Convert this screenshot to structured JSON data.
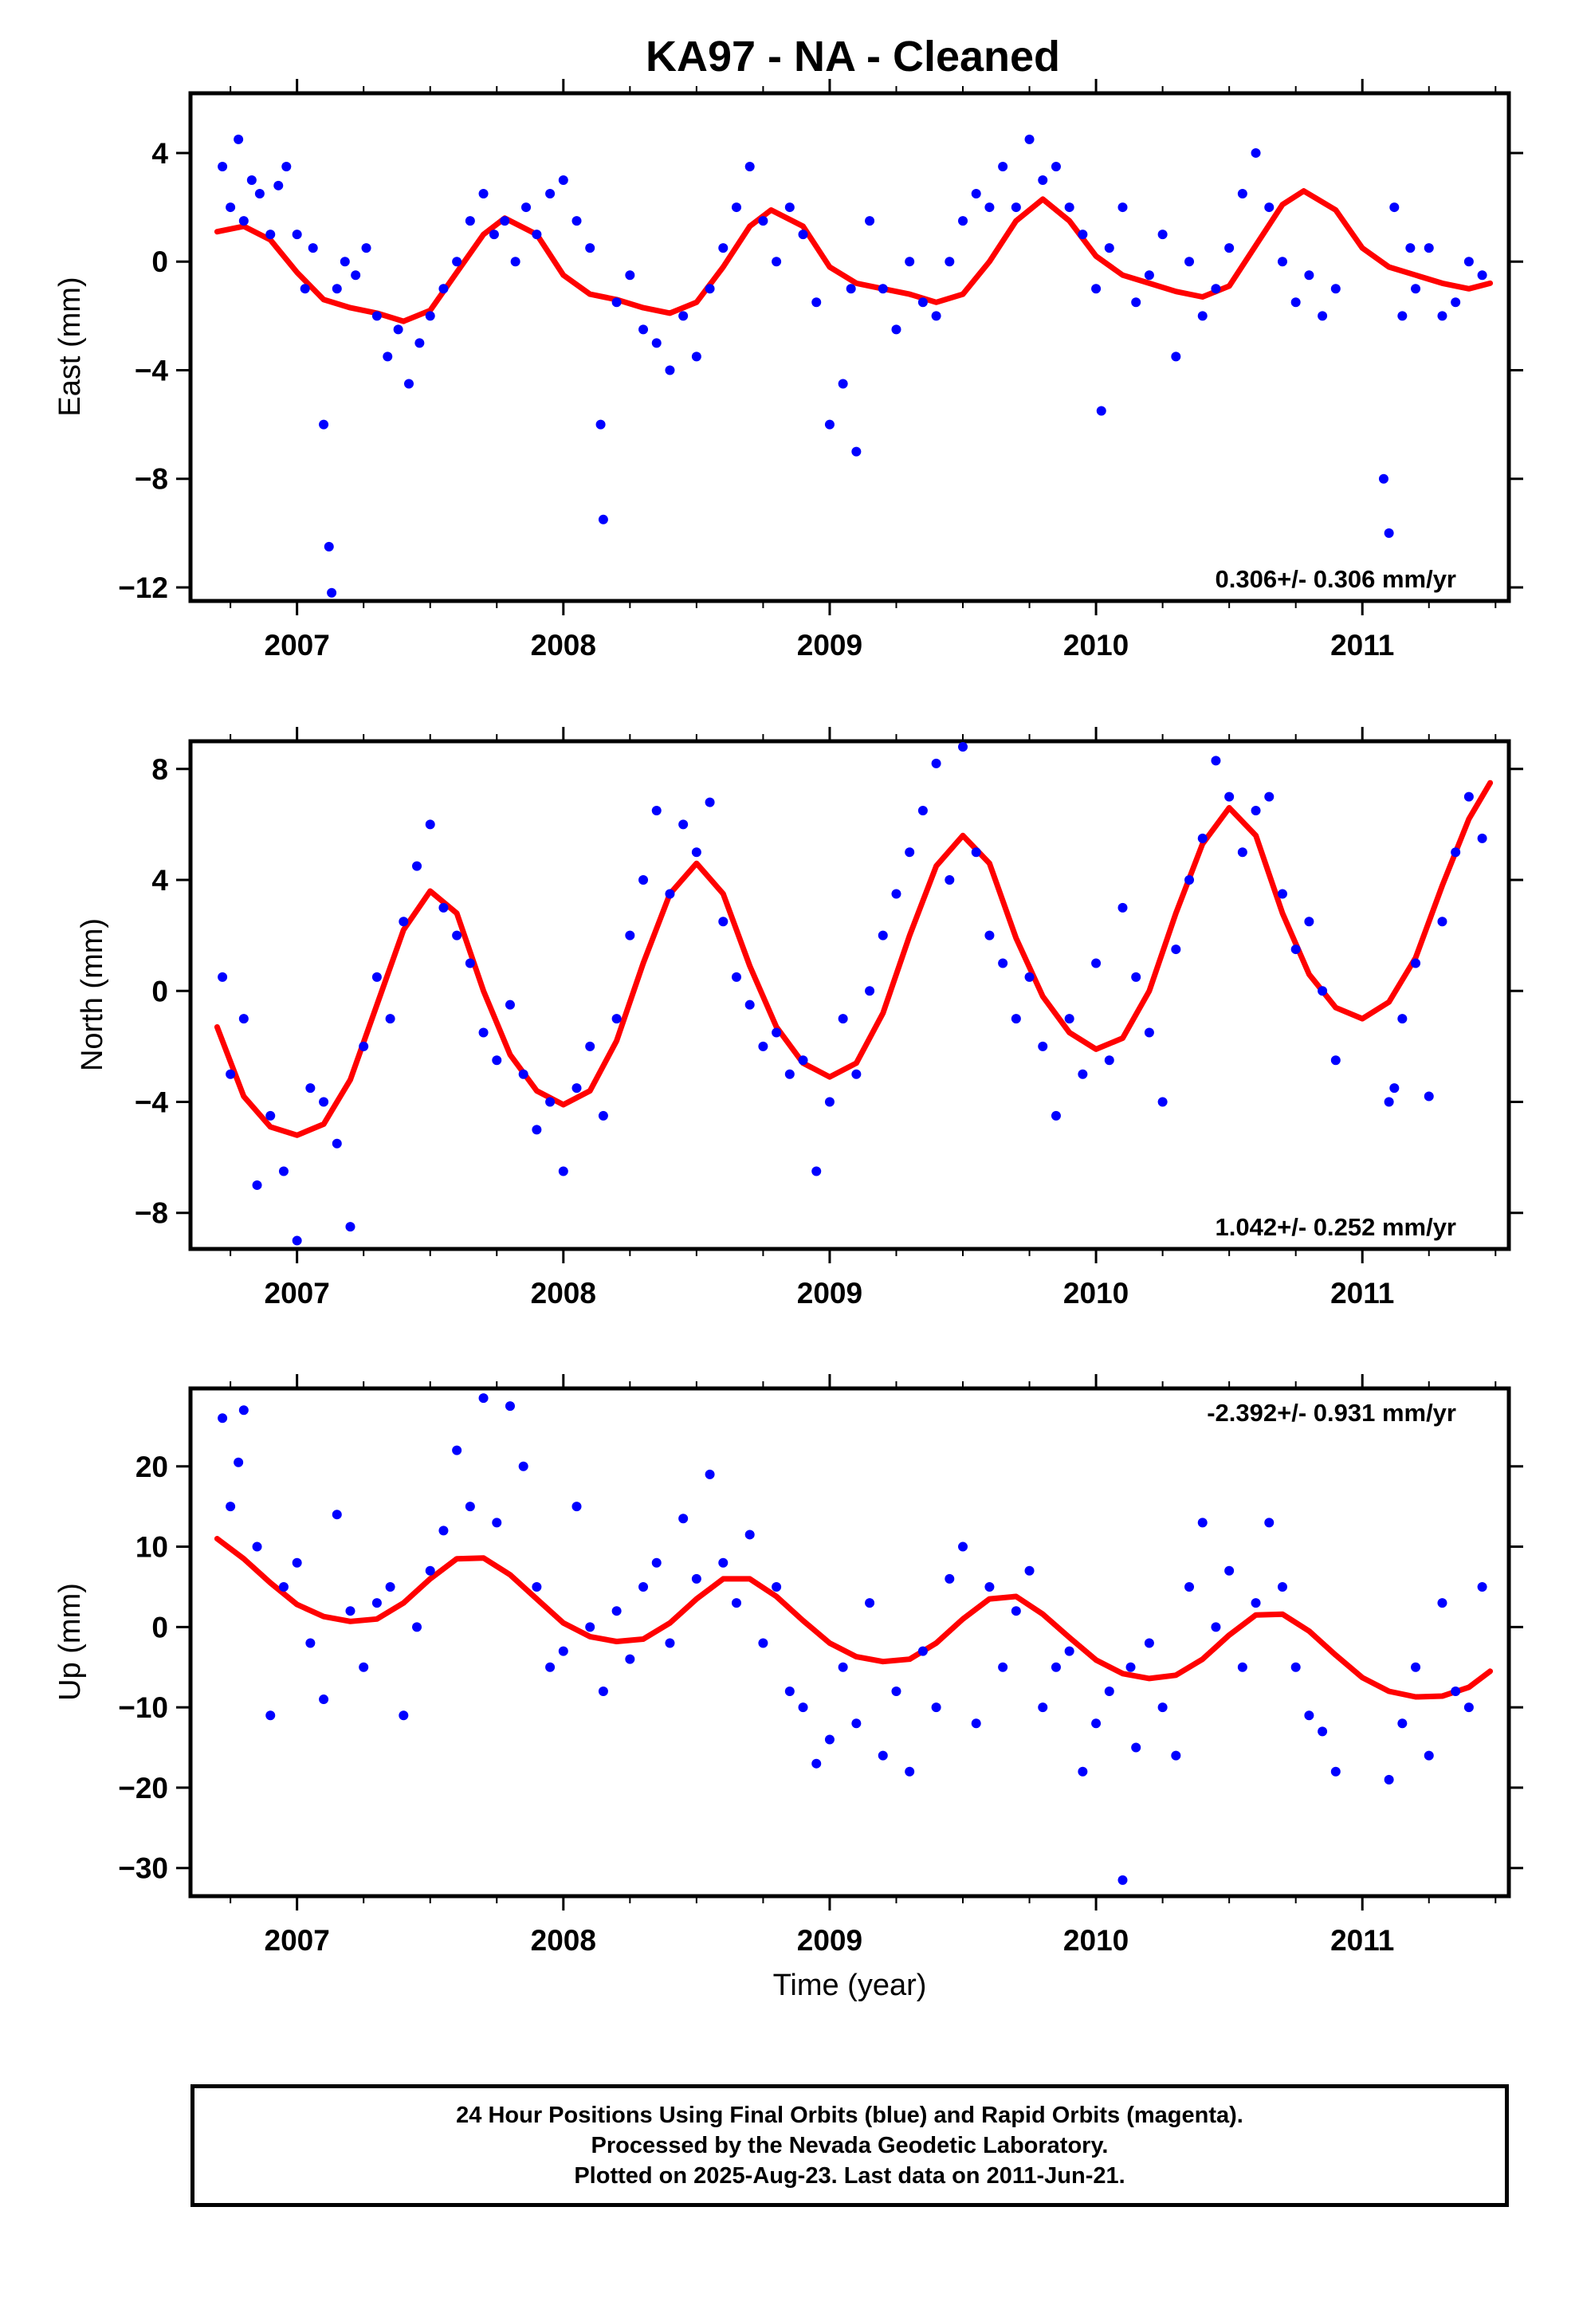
{
  "title": "KA97  - NA - Cleaned",
  "xlabel": "Time (year)",
  "caption": {
    "line1": "24 Hour Positions Using Final Orbits (blue) and Rapid Orbits (magenta).",
    "line2": "Processed by the Nevada Geodetic Laboratory.",
    "line3": "Plotted on 2025-Aug-23. Last data on 2011-Jun-21."
  },
  "colors": {
    "points": "#0000ff",
    "model": "#ff0000",
    "frame": "#000000"
  },
  "chart_data": [
    {
      "type": "scatter",
      "name": "east",
      "ylabel": "East (mm)",
      "rate": "0.306+/- 0.306 mm/yr",
      "xlim": [
        2006.6,
        2011.55
      ],
      "ylim": [
        -12.5,
        6.2
      ],
      "yticks": [
        -12,
        -8,
        -4,
        0,
        4
      ],
      "xticks": [
        2007,
        2008,
        2009,
        2010,
        2011
      ],
      "model": {
        "name": "model",
        "x": [
          2006.7,
          2006.8,
          2006.9,
          2007.0,
          2007.1,
          2007.2,
          2007.3,
          2007.4,
          2007.5,
          2007.6,
          2007.7,
          2007.78,
          2007.9,
          2008.0,
          2008.1,
          2008.2,
          2008.3,
          2008.4,
          2008.5,
          2008.6,
          2008.7,
          2008.78,
          2008.9,
          2009.0,
          2009.1,
          2009.2,
          2009.3,
          2009.4,
          2009.5,
          2009.6,
          2009.7,
          2009.8,
          2009.9,
          2010.0,
          2010.1,
          2010.2,
          2010.3,
          2010.4,
          2010.5,
          2010.6,
          2010.7,
          2010.78,
          2010.9,
          2011.0,
          2011.1,
          2011.2,
          2011.3,
          2011.4,
          2011.48
        ],
        "y": [
          1.1,
          1.3,
          0.8,
          -0.4,
          -1.4,
          -1.7,
          -1.9,
          -2.2,
          -1.8,
          -0.4,
          1.0,
          1.6,
          1.0,
          -0.5,
          -1.2,
          -1.4,
          -1.7,
          -1.9,
          -1.5,
          -0.2,
          1.3,
          1.9,
          1.3,
          -0.2,
          -0.8,
          -1.0,
          -1.2,
          -1.5,
          -1.2,
          0.0,
          1.5,
          2.3,
          1.5,
          0.2,
          -0.5,
          -0.8,
          -1.1,
          -1.3,
          -0.9,
          0.6,
          2.1,
          2.6,
          1.9,
          0.5,
          -0.2,
          -0.5,
          -0.8,
          -1.0,
          -0.8
        ]
      },
      "points": {
        "name": "daily positions",
        "x": [
          2006.72,
          2006.75,
          2006.78,
          2006.8,
          2006.83,
          2006.86,
          2006.9,
          2006.93,
          2006.96,
          2007.0,
          2007.03,
          2007.06,
          2007.1,
          2007.12,
          2007.13,
          2007.15,
          2007.18,
          2007.22,
          2007.26,
          2007.3,
          2007.34,
          2007.38,
          2007.42,
          2007.46,
          2007.5,
          2007.55,
          2007.6,
          2007.65,
          2007.7,
          2007.74,
          2007.78,
          2007.82,
          2007.86,
          2007.9,
          2007.95,
          2008.0,
          2008.05,
          2008.1,
          2008.14,
          2008.15,
          2008.2,
          2008.25,
          2008.3,
          2008.35,
          2008.4,
          2008.45,
          2008.5,
          2008.55,
          2008.6,
          2008.65,
          2008.7,
          2008.75,
          2008.8,
          2008.85,
          2008.9,
          2008.95,
          2009.0,
          2009.05,
          2009.08,
          2009.1,
          2009.15,
          2009.2,
          2009.25,
          2009.3,
          2009.35,
          2009.4,
          2009.45,
          2009.5,
          2009.55,
          2009.6,
          2009.65,
          2009.7,
          2009.75,
          2009.8,
          2009.85,
          2009.9,
          2009.95,
          2010.0,
          2010.02,
          2010.05,
          2010.1,
          2010.15,
          2010.2,
          2010.25,
          2010.3,
          2010.35,
          2010.4,
          2010.45,
          2010.5,
          2010.55,
          2010.6,
          2010.65,
          2010.7,
          2010.75,
          2010.8,
          2010.85,
          2010.9,
          2011.08,
          2011.1,
          2011.12,
          2011.15,
          2011.18,
          2011.2,
          2011.25,
          2011.3,
          2011.35,
          2011.4,
          2011.45
        ],
        "y": [
          3.5,
          2.0,
          4.5,
          1.5,
          3.0,
          2.5,
          1.0,
          2.8,
          3.5,
          1.0,
          -1.0,
          0.5,
          -6.0,
          -10.5,
          -12.2,
          -1.0,
          0.0,
          -0.5,
          0.5,
          -2.0,
          -3.5,
          -2.5,
          -4.5,
          -3.0,
          -2.0,
          -1.0,
          0.0,
          1.5,
          2.5,
          1.0,
          1.5,
          0.0,
          2.0,
          1.0,
          2.5,
          3.0,
          1.5,
          0.5,
          -6.0,
          -9.5,
          -1.5,
          -0.5,
          -2.5,
          -3.0,
          -4.0,
          -2.0,
          -3.5,
          -1.0,
          0.5,
          2.0,
          3.5,
          1.5,
          0.0,
          2.0,
          1.0,
          -1.5,
          -6.0,
          -4.5,
          -1.0,
          -7.0,
          1.5,
          -1.0,
          -2.5,
          0.0,
          -1.5,
          -2.0,
          0.0,
          1.5,
          2.5,
          2.0,
          3.5,
          2.0,
          4.5,
          3.0,
          3.5,
          2.0,
          1.0,
          -1.0,
          -5.5,
          0.5,
          2.0,
          -1.5,
          -0.5,
          1.0,
          -3.5,
          0.0,
          -2.0,
          -1.0,
          0.5,
          2.5,
          4.0,
          2.0,
          0.0,
          -1.5,
          -0.5,
          -2.0,
          -1.0,
          -8.0,
          -10.0,
          2.0,
          -2.0,
          0.5,
          -1.0,
          0.5,
          -2.0,
          -1.5,
          0.0,
          -0.5
        ]
      }
    },
    {
      "type": "scatter",
      "name": "north",
      "ylabel": "North (mm)",
      "rate": "1.042+/- 0.252 mm/yr",
      "xlim": [
        2006.6,
        2011.55
      ],
      "ylim": [
        -9.3,
        9.0
      ],
      "yticks": [
        -8,
        -4,
        0,
        4,
        8
      ],
      "xticks": [
        2007,
        2008,
        2009,
        2010,
        2011
      ],
      "model": {
        "name": "model",
        "x": [
          2006.7,
          2006.8,
          2006.9,
          2007.0,
          2007.1,
          2007.2,
          2007.3,
          2007.4,
          2007.5,
          2007.6,
          2007.7,
          2007.8,
          2007.9,
          2008.0,
          2008.1,
          2008.2,
          2008.3,
          2008.4,
          2008.5,
          2008.6,
          2008.7,
          2008.8,
          2008.9,
          2009.0,
          2009.1,
          2009.2,
          2009.3,
          2009.4,
          2009.5,
          2009.6,
          2009.7,
          2009.8,
          2009.9,
          2010.0,
          2010.1,
          2010.2,
          2010.3,
          2010.4,
          2010.5,
          2010.6,
          2010.7,
          2010.8,
          2010.9,
          2011.0,
          2011.1,
          2011.2,
          2011.3,
          2011.4,
          2011.48
        ],
        "y": [
          -1.3,
          -3.8,
          -4.9,
          -5.2,
          -4.8,
          -3.2,
          -0.5,
          2.2,
          3.6,
          2.8,
          0.0,
          -2.3,
          -3.6,
          -4.1,
          -3.6,
          -1.8,
          1.0,
          3.5,
          4.6,
          3.5,
          0.9,
          -1.3,
          -2.6,
          -3.1,
          -2.6,
          -0.8,
          2.0,
          4.5,
          5.6,
          4.6,
          1.9,
          -0.2,
          -1.5,
          -2.1,
          -1.7,
          0.0,
          2.8,
          5.3,
          6.6,
          5.6,
          2.8,
          0.6,
          -0.6,
          -1.0,
          -0.4,
          1.2,
          3.8,
          6.2,
          7.5
        ]
      },
      "points": {
        "name": "daily positions",
        "x": [
          2006.72,
          2006.75,
          2006.8,
          2006.85,
          2006.9,
          2006.95,
          2007.0,
          2007.05,
          2007.1,
          2007.15,
          2007.2,
          2007.25,
          2007.3,
          2007.35,
          2007.4,
          2007.45,
          2007.5,
          2007.55,
          2007.6,
          2007.65,
          2007.7,
          2007.75,
          2007.8,
          2007.85,
          2007.9,
          2007.95,
          2008.0,
          2008.05,
          2008.1,
          2008.15,
          2008.2,
          2008.25,
          2008.3,
          2008.35,
          2008.4,
          2008.45,
          2008.5,
          2008.55,
          2008.6,
          2008.65,
          2008.7,
          2008.75,
          2008.8,
          2008.85,
          2008.9,
          2008.95,
          2009.0,
          2009.05,
          2009.1,
          2009.15,
          2009.2,
          2009.25,
          2009.3,
          2009.35,
          2009.4,
          2009.45,
          2009.5,
          2009.55,
          2009.6,
          2009.65,
          2009.7,
          2009.75,
          2009.8,
          2009.85,
          2009.9,
          2009.95,
          2010.0,
          2010.05,
          2010.1,
          2010.15,
          2010.2,
          2010.25,
          2010.3,
          2010.35,
          2010.4,
          2010.45,
          2010.5,
          2010.55,
          2010.6,
          2010.65,
          2010.7,
          2010.75,
          2010.8,
          2010.85,
          2010.9,
          2011.1,
          2011.12,
          2011.15,
          2011.2,
          2011.25,
          2011.3,
          2011.35,
          2011.4,
          2011.45
        ],
        "y": [
          0.5,
          -3.0,
          -1.0,
          -7.0,
          -4.5,
          -6.5,
          -9.0,
          -3.5,
          -4.0,
          -5.5,
          -8.5,
          -2.0,
          0.5,
          -1.0,
          2.5,
          4.5,
          6.0,
          3.0,
          2.0,
          1.0,
          -1.5,
          -2.5,
          -0.5,
          -3.0,
          -5.0,
          -4.0,
          -6.5,
          -3.5,
          -2.0,
          -4.5,
          -1.0,
          2.0,
          4.0,
          6.5,
          3.5,
          6.0,
          5.0,
          6.8,
          2.5,
          0.5,
          -0.5,
          -2.0,
          -1.5,
          -3.0,
          -2.5,
          -6.5,
          -4.0,
          -1.0,
          -3.0,
          0.0,
          2.0,
          3.5,
          5.0,
          6.5,
          8.2,
          4.0,
          8.8,
          5.0,
          2.0,
          1.0,
          -1.0,
          0.5,
          -2.0,
          -4.5,
          -1.0,
          -3.0,
          1.0,
          -2.5,
          3.0,
          0.5,
          -1.5,
          -4.0,
          1.5,
          4.0,
          5.5,
          8.3,
          7.0,
          5.0,
          6.5,
          7.0,
          3.5,
          1.5,
          2.5,
          0.0,
          -2.5,
          -4.0,
          -3.5,
          -1.0,
          1.0,
          -3.8,
          2.5,
          5.0,
          7.0,
          5.5
        ]
      }
    },
    {
      "type": "scatter",
      "name": "up",
      "ylabel": "Up (mm)",
      "rate": "-2.392+/- 0.931 mm/yr",
      "xlim": [
        2006.6,
        2011.55
      ],
      "ylim": [
        -33.5,
        29.7
      ],
      "yticks": [
        -30,
        -20,
        -10,
        0,
        10,
        20
      ],
      "xticks": [
        2007,
        2008,
        2009,
        2010,
        2011
      ],
      "model": {
        "name": "model",
        "x": [
          2006.7,
          2006.8,
          2006.9,
          2007.0,
          2007.1,
          2007.2,
          2007.3,
          2007.4,
          2007.5,
          2007.6,
          2007.7,
          2007.8,
          2007.9,
          2008.0,
          2008.1,
          2008.2,
          2008.3,
          2008.4,
          2008.5,
          2008.6,
          2008.7,
          2008.8,
          2008.9,
          2009.0,
          2009.1,
          2009.2,
          2009.3,
          2009.4,
          2009.5,
          2009.6,
          2009.7,
          2009.8,
          2009.9,
          2010.0,
          2010.1,
          2010.2,
          2010.3,
          2010.4,
          2010.5,
          2010.6,
          2010.7,
          2010.8,
          2010.9,
          2011.0,
          2011.1,
          2011.2,
          2011.3,
          2011.4,
          2011.48
        ],
        "y": [
          11.0,
          8.5,
          5.5,
          2.8,
          1.3,
          0.7,
          1.0,
          3.0,
          6.0,
          8.5,
          8.6,
          6.5,
          3.5,
          0.5,
          -1.2,
          -1.8,
          -1.5,
          0.5,
          3.5,
          6.0,
          6.0,
          3.8,
          0.8,
          -2.0,
          -3.7,
          -4.3,
          -4.0,
          -2.0,
          1.0,
          3.5,
          3.8,
          1.6,
          -1.3,
          -4.1,
          -5.8,
          -6.4,
          -6.0,
          -4.0,
          -1.0,
          1.5,
          1.6,
          -0.5,
          -3.5,
          -6.3,
          -8.0,
          -8.7,
          -8.6,
          -7.5,
          -5.5
        ]
      },
      "points": {
        "name": "daily positions",
        "x": [
          2006.72,
          2006.75,
          2006.78,
          2006.8,
          2006.85,
          2006.9,
          2006.95,
          2007.0,
          2007.05,
          2007.1,
          2007.15,
          2007.2,
          2007.25,
          2007.3,
          2007.35,
          2007.4,
          2007.45,
          2007.5,
          2007.55,
          2007.6,
          2007.65,
          2007.7,
          2007.75,
          2007.8,
          2007.85,
          2007.9,
          2007.95,
          2008.0,
          2008.05,
          2008.1,
          2008.15,
          2008.2,
          2008.25,
          2008.3,
          2008.35,
          2008.4,
          2008.45,
          2008.5,
          2008.55,
          2008.6,
          2008.65,
          2008.7,
          2008.75,
          2008.8,
          2008.85,
          2008.9,
          2008.95,
          2009.0,
          2009.05,
          2009.1,
          2009.15,
          2009.2,
          2009.25,
          2009.3,
          2009.35,
          2009.4,
          2009.45,
          2009.5,
          2009.55,
          2009.6,
          2009.65,
          2009.7,
          2009.75,
          2009.8,
          2009.85,
          2009.9,
          2009.95,
          2010.0,
          2010.05,
          2010.1,
          2010.13,
          2010.15,
          2010.2,
          2010.25,
          2010.3,
          2010.35,
          2010.4,
          2010.45,
          2010.5,
          2010.55,
          2010.6,
          2010.65,
          2010.7,
          2010.75,
          2010.8,
          2010.85,
          2010.9,
          2011.1,
          2011.15,
          2011.2,
          2011.25,
          2011.3,
          2011.35,
          2011.4,
          2011.45
        ],
        "y": [
          26.0,
          15.0,
          20.5,
          27.0,
          10.0,
          -11.0,
          5.0,
          8.0,
          -2.0,
          -9.0,
          14.0,
          2.0,
          -5.0,
          3.0,
          5.0,
          -11.0,
          0.0,
          7.0,
          12.0,
          22.0,
          15.0,
          28.5,
          13.0,
          27.5,
          20.0,
          5.0,
          -5.0,
          -3.0,
          15.0,
          0.0,
          -8.0,
          2.0,
          -4.0,
          5.0,
          8.0,
          -2.0,
          13.5,
          6.0,
          19.0,
          8.0,
          3.0,
          11.5,
          -2.0,
          5.0,
          -8.0,
          -10.0,
          -17.0,
          -14.0,
          -5.0,
          -12.0,
          3.0,
          -16.0,
          -8.0,
          -18.0,
          -3.0,
          -10.0,
          6.0,
          10.0,
          -12.0,
          5.0,
          -5.0,
          2.0,
          7.0,
          -10.0,
          -5.0,
          -3.0,
          -18.0,
          -12.0,
          -8.0,
          -31.5,
          -5.0,
          -15.0,
          -2.0,
          -10.0,
          -16.0,
          5.0,
          13.0,
          0.0,
          7.0,
          -5.0,
          3.0,
          13.0,
          5.0,
          -5.0,
          -11.0,
          -13.0,
          -18.0,
          -19.0,
          -12.0,
          -5.0,
          -16.0,
          3.0,
          -8.0,
          -10.0,
          5.0
        ]
      }
    }
  ]
}
